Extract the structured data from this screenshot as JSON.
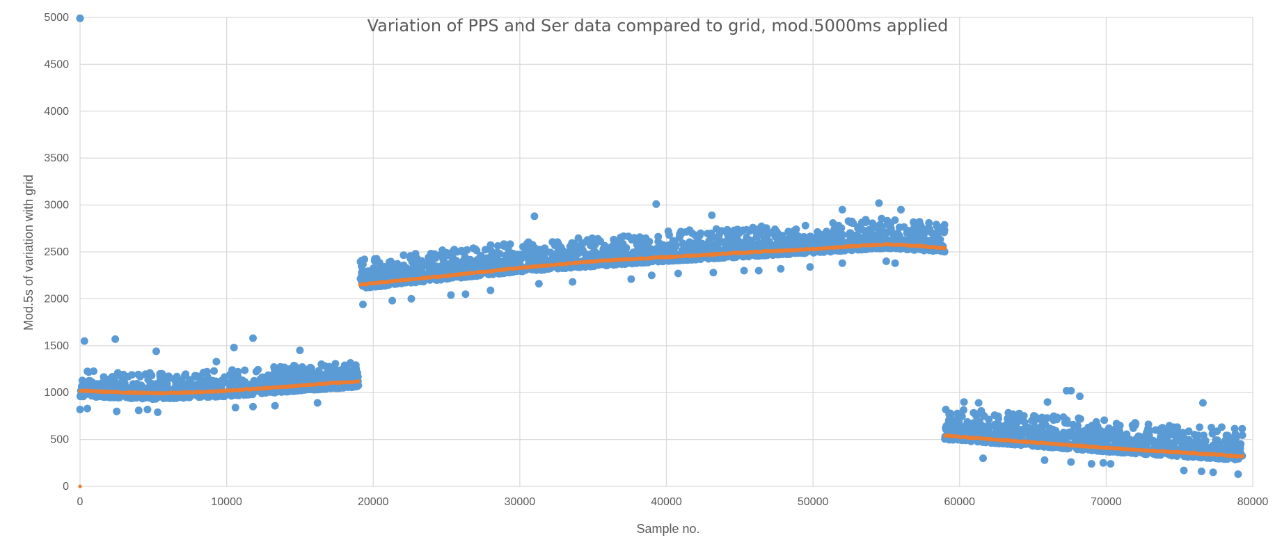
{
  "chart_data": {
    "type": "scatter",
    "title": "Variation of PPS and Ser data compared to grid, mod.5000ms applied",
    "xlabel": "Sample no.",
    "ylabel": "Mod.5s of variation with grid",
    "xlim": [
      0,
      80000
    ],
    "ylim": [
      0,
      5000
    ],
    "x_ticks": [
      "0",
      "10000",
      "20000",
      "30000",
      "40000",
      "50000",
      "60000",
      "70000",
      "80000"
    ],
    "y_ticks": [
      "0",
      "500",
      "1000",
      "1500",
      "2000",
      "2500",
      "3000",
      "3500",
      "4000",
      "4500",
      "5000"
    ],
    "grid": true,
    "legend": "none",
    "colors": {
      "scatter": "#5b9bd5",
      "trend": "#ed7d31",
      "grid": "#d9d9d9",
      "text": "#595959"
    },
    "series": [
      {
        "kind": "scatter",
        "segments": [
          {
            "x_range": [
              0,
              19000
            ],
            "trend": [
              [
                0,
                1020
              ],
              [
                5000,
                990
              ],
              [
                10000,
                1020
              ],
              [
                15000,
                1080
              ],
              [
                19000,
                1120
              ]
            ],
            "spread": [
              -60,
              220
            ]
          },
          {
            "x_range": [
              19100,
              59000
            ],
            "trend": [
              [
                19100,
                2150
              ],
              [
                30000,
                2330
              ],
              [
                40000,
                2440
              ],
              [
                50000,
                2530
              ],
              [
                55000,
                2580
              ],
              [
                59000,
                2540
              ]
            ],
            "spread": [
              -40,
              280
            ]
          },
          {
            "x_range": [
              59000,
              79300
            ],
            "trend": [
              [
                59000,
                540
              ],
              [
                65000,
                470
              ],
              [
                70000,
                410
              ],
              [
                75000,
                360
              ],
              [
                79300,
                320
              ]
            ],
            "spread": [
              -40,
              300
            ]
          }
        ],
        "points": [
          {
            "x": 0,
            "y": 4990
          },
          {
            "x": 300,
            "y": 1550
          },
          {
            "x": 2400,
            "y": 1570
          },
          {
            "x": 5200,
            "y": 1440
          },
          {
            "x": 10500,
            "y": 1480
          },
          {
            "x": 11800,
            "y": 1580
          },
          {
            "x": 15000,
            "y": 1450
          },
          {
            "x": 0,
            "y": 820
          },
          {
            "x": 500,
            "y": 830
          },
          {
            "x": 2500,
            "y": 800
          },
          {
            "x": 4000,
            "y": 810
          },
          {
            "x": 4600,
            "y": 820
          },
          {
            "x": 5300,
            "y": 790
          },
          {
            "x": 10600,
            "y": 840
          },
          {
            "x": 11800,
            "y": 850
          },
          {
            "x": 13300,
            "y": 860
          },
          {
            "x": 16200,
            "y": 890
          },
          {
            "x": 9300,
            "y": 1330
          },
          {
            "x": 19300,
            "y": 1940
          },
          {
            "x": 21300,
            "y": 1980
          },
          {
            "x": 22600,
            "y": 2000
          },
          {
            "x": 25300,
            "y": 2040
          },
          {
            "x": 26300,
            "y": 2050
          },
          {
            "x": 28000,
            "y": 2090
          },
          {
            "x": 31300,
            "y": 2160
          },
          {
            "x": 33600,
            "y": 2180
          },
          {
            "x": 37600,
            "y": 2210
          },
          {
            "x": 39000,
            "y": 2250
          },
          {
            "x": 40800,
            "y": 2270
          },
          {
            "x": 43200,
            "y": 2280
          },
          {
            "x": 45300,
            "y": 2300
          },
          {
            "x": 46300,
            "y": 2300
          },
          {
            "x": 47800,
            "y": 2320
          },
          {
            "x": 49800,
            "y": 2340
          },
          {
            "x": 52000,
            "y": 2380
          },
          {
            "x": 55000,
            "y": 2400
          },
          {
            "x": 55600,
            "y": 2380
          },
          {
            "x": 19400,
            "y": 2420
          },
          {
            "x": 31000,
            "y": 2880
          },
          {
            "x": 39300,
            "y": 3010
          },
          {
            "x": 54500,
            "y": 3020
          },
          {
            "x": 52000,
            "y": 2950
          },
          {
            "x": 56000,
            "y": 2950
          },
          {
            "x": 43100,
            "y": 2890
          },
          {
            "x": 60300,
            "y": 900
          },
          {
            "x": 61300,
            "y": 890
          },
          {
            "x": 66000,
            "y": 900
          },
          {
            "x": 67300,
            "y": 1020
          },
          {
            "x": 67600,
            "y": 1020
          },
          {
            "x": 68200,
            "y": 960
          },
          {
            "x": 61600,
            "y": 300
          },
          {
            "x": 65800,
            "y": 280
          },
          {
            "x": 67600,
            "y": 260
          },
          {
            "x": 69000,
            "y": 240
          },
          {
            "x": 69800,
            "y": 250
          },
          {
            "x": 70300,
            "y": 240
          },
          {
            "x": 75300,
            "y": 170
          },
          {
            "x": 76500,
            "y": 160
          },
          {
            "x": 77300,
            "y": 150
          },
          {
            "x": 79000,
            "y": 130
          },
          {
            "x": 76600,
            "y": 890
          }
        ]
      },
      {
        "kind": "trend",
        "points": [
          [
            0,
            1020
          ],
          [
            2500,
            1005
          ],
          [
            5000,
            993
          ],
          [
            7500,
            1000
          ],
          [
            10000,
            1020
          ],
          [
            12500,
            1045
          ],
          [
            15000,
            1075
          ],
          [
            17500,
            1105
          ],
          [
            19000,
            1120
          ],
          [
            19100,
            2150
          ],
          [
            22000,
            2200
          ],
          [
            25000,
            2245
          ],
          [
            30000,
            2330
          ],
          [
            35000,
            2400
          ],
          [
            40000,
            2445
          ],
          [
            45000,
            2490
          ],
          [
            50000,
            2530
          ],
          [
            53000,
            2565
          ],
          [
            55000,
            2580
          ],
          [
            57000,
            2565
          ],
          [
            59000,
            2540
          ],
          [
            59000,
            540
          ],
          [
            62000,
            505
          ],
          [
            65000,
            470
          ],
          [
            68000,
            435
          ],
          [
            70000,
            410
          ],
          [
            73000,
            380
          ],
          [
            76000,
            355
          ],
          [
            79300,
            320
          ]
        ],
        "extra_points": [
          [
            0,
            0
          ]
        ]
      }
    ]
  }
}
